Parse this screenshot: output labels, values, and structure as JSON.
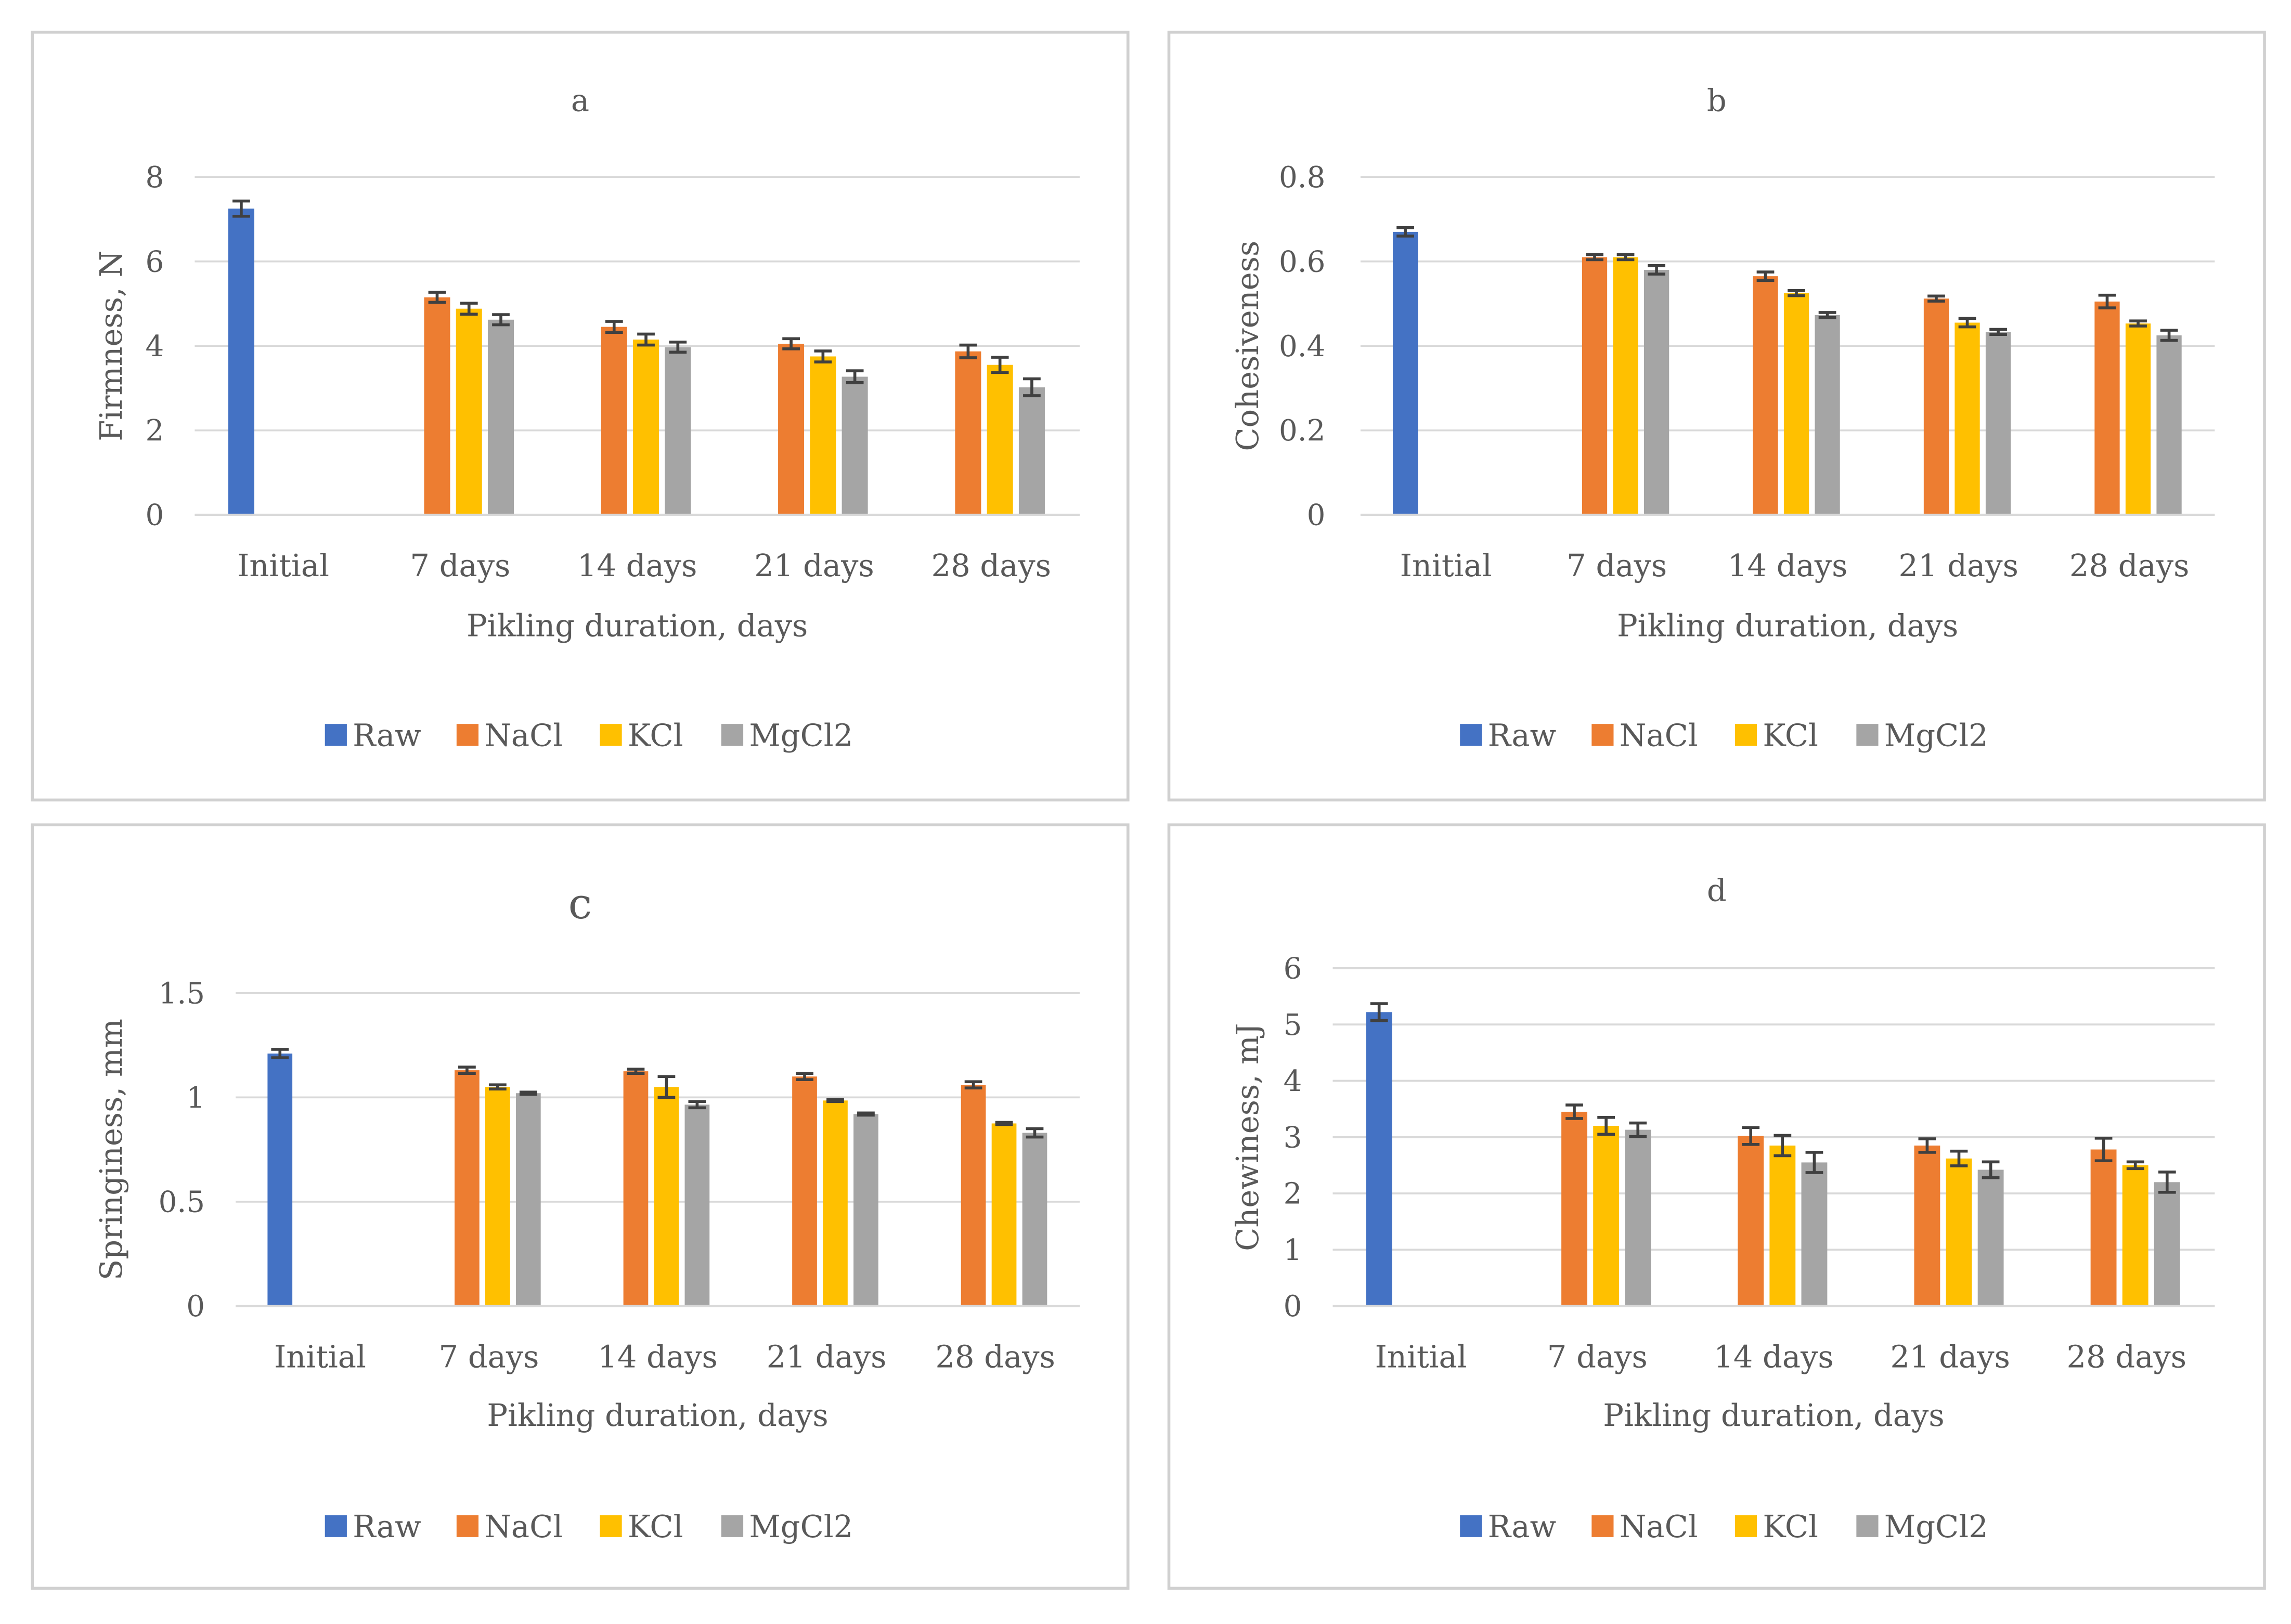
{
  "chart_data": [
    {
      "panel": "a",
      "type": "bar",
      "title": "a",
      "xlabel": "Pikling duration, days",
      "ylabel": "Firmness, N",
      "ylim": [
        0,
        8
      ],
      "yticks": [
        "0",
        "2",
        "4",
        "6",
        "8"
      ],
      "categories": [
        "Initial",
        "7 days",
        "14 days",
        "21 days",
        "28 days"
      ],
      "legend": [
        "Raw",
        "NaCl",
        "KCl",
        "MgCl2"
      ],
      "series": [
        {
          "name": "Raw",
          "color": "#4472c4",
          "values": [
            7.25,
            null,
            null,
            null,
            null
          ],
          "errors": [
            0.18,
            null,
            null,
            null,
            null
          ]
        },
        {
          "name": "NaCl",
          "color": "#ed7d31",
          "values": [
            null,
            5.15,
            4.45,
            4.05,
            3.87
          ],
          "errors": [
            null,
            0.12,
            0.13,
            0.12,
            0.15
          ]
        },
        {
          "name": "KCl",
          "color": "#ffc000",
          "values": [
            null,
            4.88,
            4.15,
            3.75,
            3.55
          ],
          "errors": [
            null,
            0.13,
            0.13,
            0.13,
            0.18
          ]
        },
        {
          "name": "MgCl2",
          "color": "#a5a5a5",
          "values": [
            null,
            4.62,
            3.97,
            3.27,
            3.02
          ],
          "errors": [
            null,
            0.12,
            0.12,
            0.14,
            0.2
          ]
        }
      ]
    },
    {
      "panel": "b",
      "type": "bar",
      "title": "b",
      "xlabel": "Pikling duration, days",
      "ylabel": "Cohesiveness",
      "ylim": [
        0,
        0.8
      ],
      "yticks": [
        "0",
        "0.2",
        "0.4",
        "0.6",
        "0.8"
      ],
      "categories": [
        "Initial",
        "7 days",
        "14 days",
        "21 days",
        "28 days"
      ],
      "legend": [
        "Raw",
        "NaCl",
        "KCl",
        "MgCl2"
      ],
      "series": [
        {
          "name": "Raw",
          "color": "#4472c4",
          "values": [
            0.67,
            null,
            null,
            null,
            null
          ],
          "errors": [
            0.01,
            null,
            null,
            null,
            null
          ]
        },
        {
          "name": "NaCl",
          "color": "#ed7d31",
          "values": [
            null,
            0.61,
            0.565,
            0.512,
            0.505
          ],
          "errors": [
            null,
            0.006,
            0.01,
            0.006,
            0.015
          ]
        },
        {
          "name": "KCl",
          "color": "#ffc000",
          "values": [
            null,
            0.61,
            0.525,
            0.455,
            0.453
          ],
          "errors": [
            null,
            0.006,
            0.006,
            0.01,
            0.006
          ]
        },
        {
          "name": "MgCl2",
          "color": "#a5a5a5",
          "values": [
            null,
            0.58,
            0.473,
            0.433,
            0.425
          ],
          "errors": [
            null,
            0.01,
            0.006,
            0.006,
            0.012
          ]
        }
      ]
    },
    {
      "panel": "c",
      "type": "bar",
      "title": "c",
      "xlabel": "Pikling duration, days",
      "ylabel": "Springiness, mm",
      "ylim": [
        0,
        1.5
      ],
      "yticks": [
        "0",
        "0.5",
        "1",
        "1.5"
      ],
      "categories": [
        "Initial",
        "7 days",
        "14 days",
        "21 days",
        "28 days"
      ],
      "legend": [
        "Raw",
        "NaCl",
        "KCl",
        "MgCl2"
      ],
      "series": [
        {
          "name": "Raw",
          "color": "#4472c4",
          "values": [
            1.21,
            null,
            null,
            null,
            null
          ],
          "errors": [
            0.02,
            null,
            null,
            null,
            null
          ]
        },
        {
          "name": "NaCl",
          "color": "#ed7d31",
          "values": [
            null,
            1.13,
            1.125,
            1.1,
            1.06
          ],
          "errors": [
            null,
            0.015,
            0.01,
            0.015,
            0.015
          ]
        },
        {
          "name": "KCl",
          "color": "#ffc000",
          "values": [
            null,
            1.05,
            1.05,
            0.985,
            0.875
          ],
          "errors": [
            null,
            0.01,
            0.05,
            0.005,
            0.005
          ]
        },
        {
          "name": "MgCl2",
          "color": "#a5a5a5",
          "values": [
            null,
            1.02,
            0.965,
            0.92,
            0.83
          ],
          "errors": [
            null,
            0.005,
            0.015,
            0.005,
            0.02
          ]
        }
      ]
    },
    {
      "panel": "d",
      "type": "bar",
      "title": "d",
      "xlabel": "Pikling duration, days",
      "ylabel": "Chewiness, mJ",
      "ylim": [
        0,
        6
      ],
      "yticks": [
        "0",
        "1",
        "2",
        "3",
        "4",
        "5",
        "6"
      ],
      "categories": [
        "Initial",
        "7 days",
        "14 days",
        "21 days",
        "28 days"
      ],
      "legend": [
        "Raw",
        "NaCl",
        "KCl",
        "MgCl2"
      ],
      "series": [
        {
          "name": "Raw",
          "color": "#4472c4",
          "values": [
            5.22,
            null,
            null,
            null,
            null
          ],
          "errors": [
            0.15,
            null,
            null,
            null,
            null
          ]
        },
        {
          "name": "NaCl",
          "color": "#ed7d31",
          "values": [
            null,
            3.45,
            3.02,
            2.85,
            2.78
          ],
          "errors": [
            null,
            0.12,
            0.15,
            0.12,
            0.2
          ]
        },
        {
          "name": "KCl",
          "color": "#ffc000",
          "values": [
            null,
            3.2,
            2.85,
            2.62,
            2.5
          ],
          "errors": [
            null,
            0.15,
            0.18,
            0.13,
            0.06
          ]
        },
        {
          "name": "MgCl2",
          "color": "#a5a5a5",
          "values": [
            null,
            3.13,
            2.55,
            2.42,
            2.2
          ],
          "errors": [
            null,
            0.12,
            0.18,
            0.14,
            0.18
          ]
        }
      ]
    }
  ]
}
